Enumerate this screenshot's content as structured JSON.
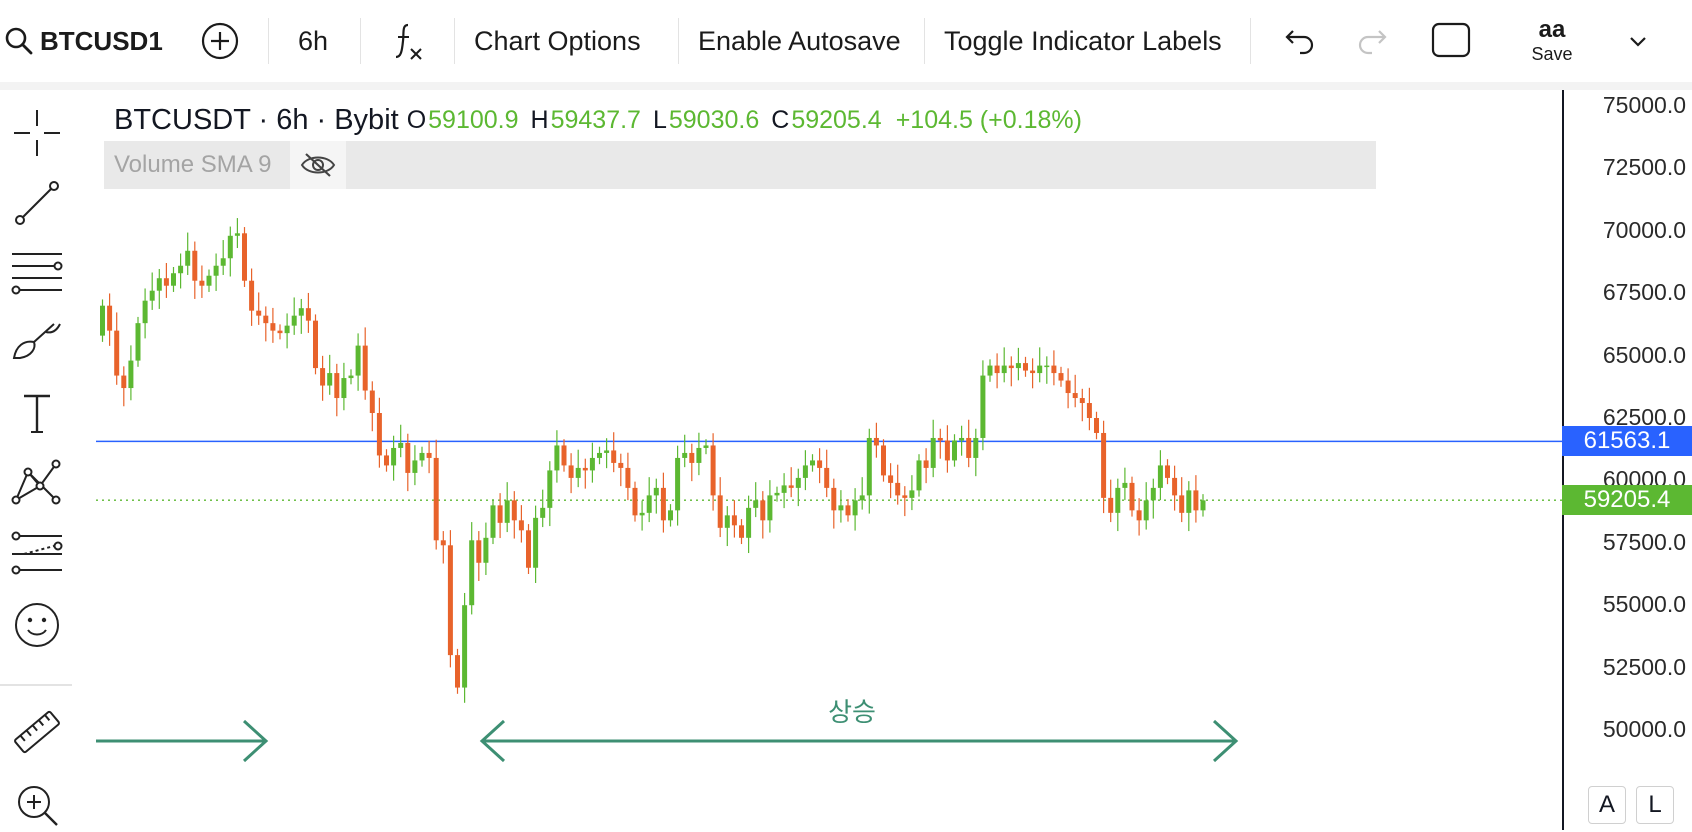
{
  "toolbar": {
    "symbol": "BTCUSD1",
    "interval": "6h",
    "chart_options": "Chart Options",
    "autosave": "Enable Autosave",
    "toggle_labels": "Toggle Indicator Labels",
    "save_top": "aa",
    "save_label": "Save"
  },
  "legend": {
    "title": "BTCUSDT · 6h · Bybit",
    "o_label": "O",
    "o": "59100.9",
    "h_label": "H",
    "h": "59437.7",
    "l_label": "L",
    "l": "59030.6",
    "c_label": "C",
    "c": "59205.4",
    "change": "+104.5 (+0.18%)"
  },
  "indicator": {
    "label": "Volume SMA 9"
  },
  "price_axis": {
    "ticks": [
      "75000.0",
      "72500.0",
      "70000.0",
      "67500.0",
      "65000.0",
      "62500.0",
      "60000.0",
      "57500.0",
      "55000.0",
      "52500.0",
      "50000.0"
    ],
    "hline_label": "61563.1",
    "last_label": "59205.4",
    "buttons": [
      "A",
      "L"
    ]
  },
  "annotation": {
    "text": "상승"
  },
  "colors": {
    "up": "#5cb832",
    "down": "#e8632b",
    "hline": "#2962ff",
    "arrow": "#3d8f73",
    "last": "#5cb832"
  },
  "chart_data": {
    "type": "candlestick",
    "symbol": "BTCUSDT",
    "interval": "6h",
    "exchange": "Bybit",
    "ylim": [
      48000,
      76000
    ],
    "horizontal_line": 61563.1,
    "last_price": 59205.4,
    "closes": [
      67000,
      66000,
      64200,
      63700,
      64800,
      66300,
      67200,
      67600,
      68100,
      67800,
      68300,
      68600,
      69200,
      68000,
      67800,
      68200,
      68600,
      68900,
      69800,
      69900,
      68000,
      66800,
      66600,
      66300,
      66000,
      65900,
      66200,
      66600,
      66900,
      66400,
      64500,
      63800,
      64300,
      63300,
      64100,
      64200,
      65400,
      63600,
      62700,
      61000,
      60600,
      61300,
      61500,
      60300,
      60800,
      61100,
      60900,
      57600,
      57400,
      53000,
      51700,
      55000,
      57600,
      56700,
      57700,
      59000,
      58300,
      59200,
      58400,
      58000,
      56500,
      58500,
      58900,
      60400,
      61400,
      60600,
      60100,
      60500,
      60400,
      60900,
      61100,
      61200,
      60700,
      60500,
      59700,
      58600,
      58700,
      59400,
      59700,
      58400,
      58800,
      60900,
      61100,
      60700,
      61300,
      61400,
      59400,
      58100,
      58600,
      58200,
      57700,
      58900,
      59200,
      58400,
      59400,
      59500,
      59800,
      59700,
      60100,
      60600,
      60800,
      60500,
      59700,
      58800,
      59000,
      58600,
      59200,
      59400,
      61700,
      61400,
      60200,
      59900,
      59400,
      59300,
      59600,
      60800,
      60500,
      61700,
      61600,
      60800,
      61600,
      61700,
      60900,
      61700,
      64200,
      64600,
      64300,
      64600,
      64500,
      64700,
      64400,
      64300,
      64600,
      64600,
      64300,
      64000,
      63500,
      63300,
      63100,
      62500,
      61900,
      59300,
      58700,
      59700,
      59900,
      58800,
      58400,
      59200,
      59700,
      60600,
      60100,
      59400,
      58700,
      59600,
      58800,
      59200
    ]
  }
}
